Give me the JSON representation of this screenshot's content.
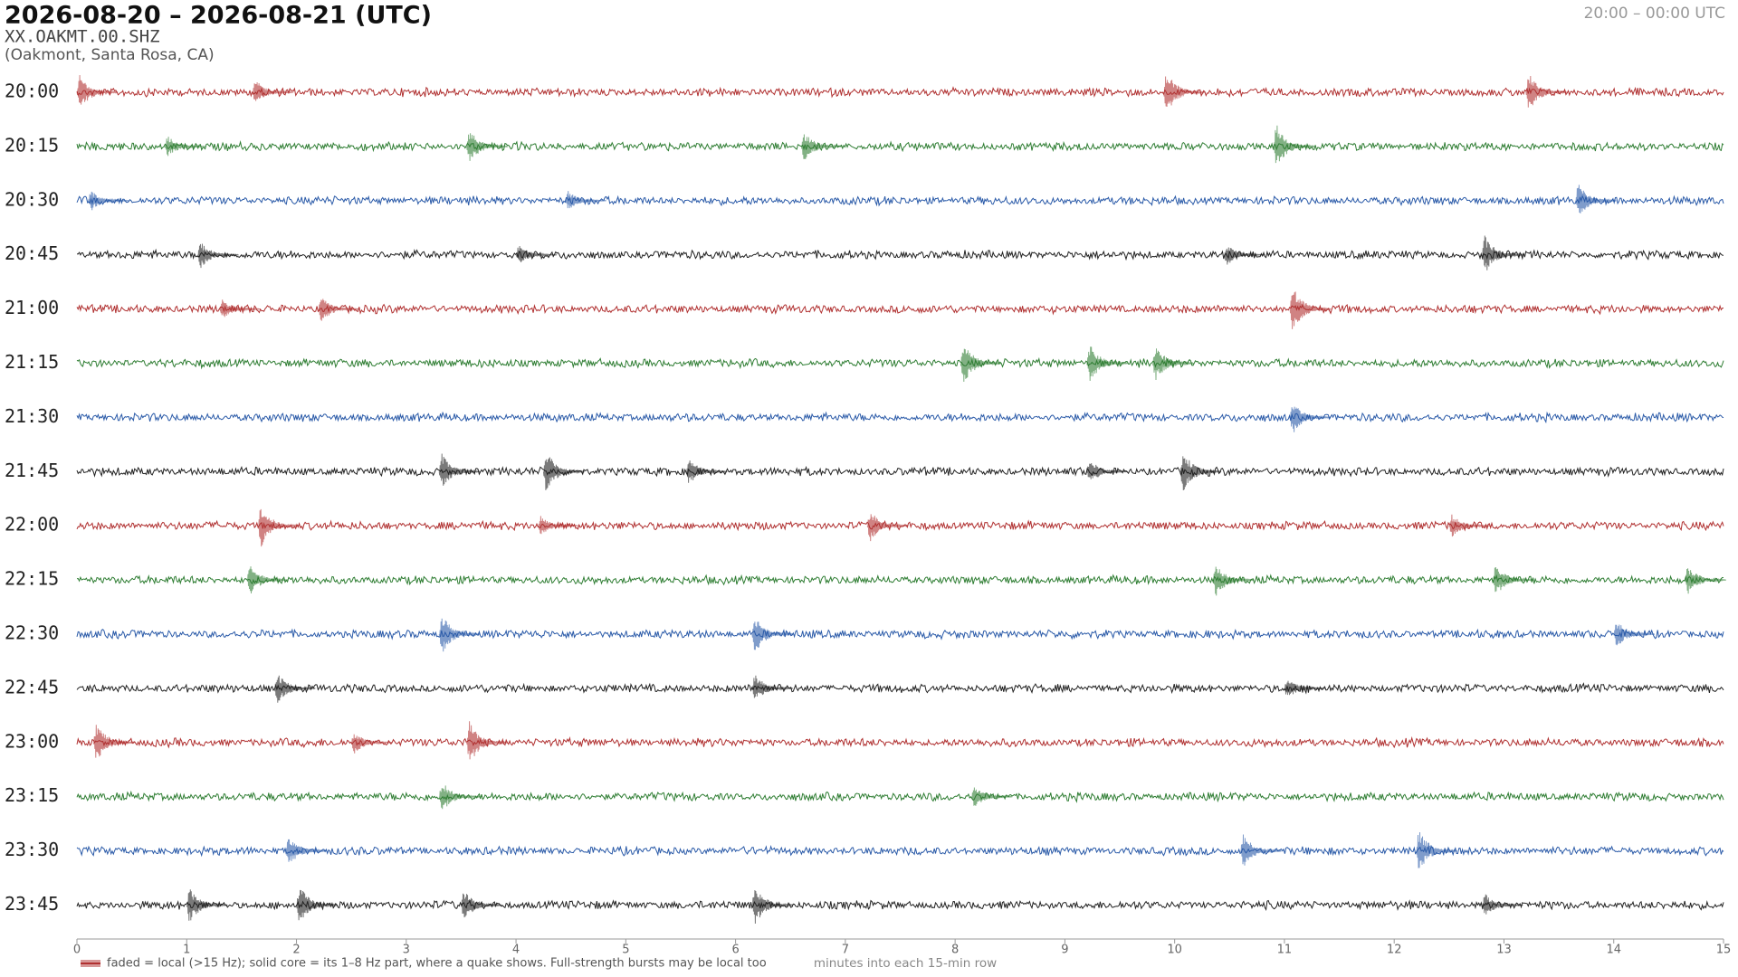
{
  "chart_data": {
    "type": "helicorder",
    "title": "2026-08-20 – 2026-08-21  (UTC)",
    "station": "XX.OAKMT.00.SHZ",
    "location": "(Oakmont, Santa Rosa, CA)",
    "time_range": "20:00 – 00:00 UTC",
    "xlabel": "minutes into each 15-min row",
    "legend": "faded = local (>15 Hz); solid core = its 1–8 Hz part, where a quake shows. Full-strength bursts may be local too",
    "xlim": [
      0,
      15
    ],
    "xticks": [
      0,
      1,
      2,
      3,
      4,
      5,
      6,
      7,
      8,
      9,
      10,
      11,
      12,
      13,
      14,
      15
    ],
    "rows": [
      {
        "label": "20:00",
        "color": "#b03030",
        "bursts": [
          0.05,
          1.65,
          9.95,
          13.25
        ]
      },
      {
        "label": "20:15",
        "color": "#2e7d32",
        "bursts": [
          0.85,
          3.6,
          6.65,
          10.95
        ]
      },
      {
        "label": "20:30",
        "color": "#2a5aa8",
        "bursts": [
          0.15,
          4.5,
          13.7
        ]
      },
      {
        "label": "20:45",
        "color": "#222222",
        "bursts": [
          1.15,
          4.05,
          10.5,
          12.85
        ]
      },
      {
        "label": "21:00",
        "color": "#b03030",
        "bursts": [
          1.35,
          2.25,
          11.1
        ]
      },
      {
        "label": "21:15",
        "color": "#2e7d32",
        "bursts": [
          8.1,
          9.25,
          9.85
        ]
      },
      {
        "label": "21:30",
        "color": "#2a5aa8",
        "bursts": [
          11.1
        ]
      },
      {
        "label": "21:45",
        "color": "#222222",
        "bursts": [
          3.35,
          4.3,
          5.6,
          9.25,
          10.1
        ]
      },
      {
        "label": "22:00",
        "color": "#b03030",
        "bursts": [
          1.7,
          4.25,
          7.25,
          12.55
        ]
      },
      {
        "label": "22:15",
        "color": "#2e7d32",
        "bursts": [
          1.6,
          10.4,
          12.95,
          14.7
        ]
      },
      {
        "label": "22:30",
        "color": "#2a5aa8",
        "bursts": [
          3.35,
          6.2,
          14.05
        ]
      },
      {
        "label": "22:45",
        "color": "#222222",
        "bursts": [
          1.85,
          6.2,
          11.05
        ]
      },
      {
        "label": "23:00",
        "color": "#b03030",
        "bursts": [
          0.2,
          2.55,
          3.6
        ]
      },
      {
        "label": "23:15",
        "color": "#2e7d32",
        "bursts": [
          3.35,
          8.2
        ]
      },
      {
        "label": "23:30",
        "color": "#2a5aa8",
        "bursts": [
          1.95,
          10.65,
          12.25
        ]
      },
      {
        "label": "23:45",
        "color": "#222222",
        "bursts": [
          1.05,
          2.05,
          3.55,
          6.2,
          12.85
        ]
      }
    ]
  }
}
